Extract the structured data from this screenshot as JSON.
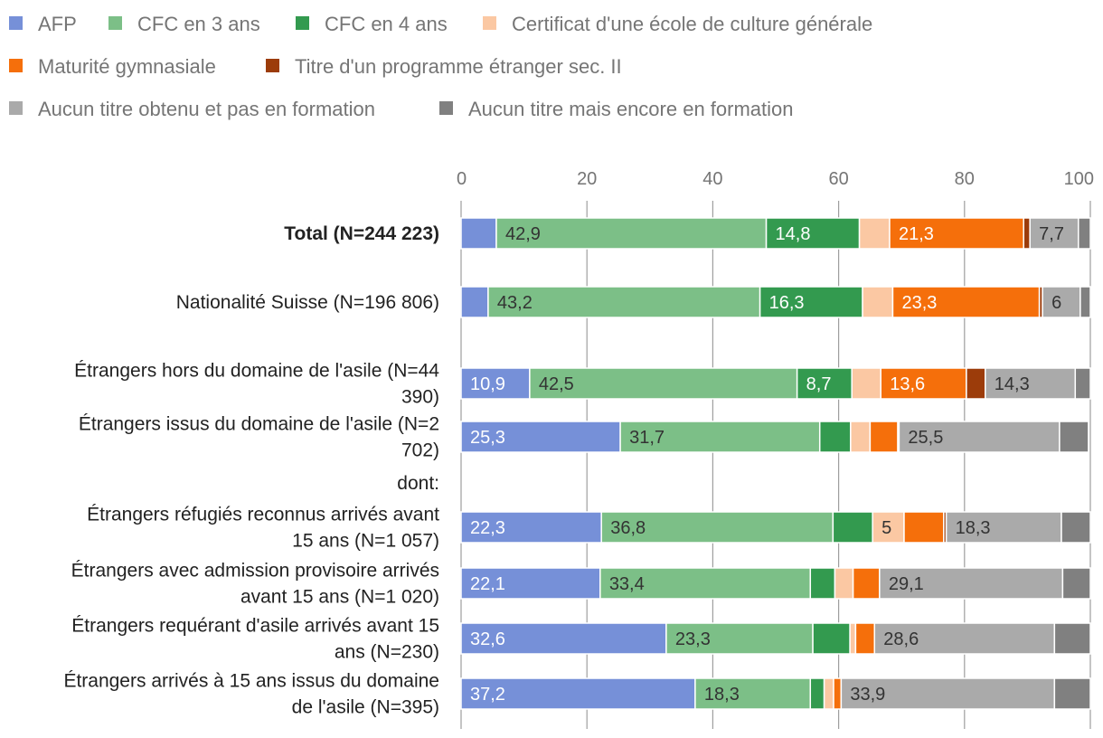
{
  "chart_data": {
    "type": "bar",
    "orientation": "horizontal",
    "stacked": true,
    "xlim": [
      0,
      100
    ],
    "xticks": [
      0,
      20,
      40,
      60,
      80,
      100
    ],
    "grid": true,
    "legend_position": "top",
    "title": "",
    "xlabel": "",
    "ylabel": "",
    "series": [
      {
        "name": "AFP",
        "color": "#7690d8"
      },
      {
        "name": "CFC en 3 ans",
        "color": "#7cbf87"
      },
      {
        "name": "CFC en 4 ans",
        "color": "#339a4f"
      },
      {
        "name": "Certificat d'une école de culture générale",
        "color": "#fbc8a3"
      },
      {
        "name": "Maturité gymnasiale",
        "color": "#f56f0b"
      },
      {
        "name": "Titre d'un programme étranger sec. II",
        "color": "#9c3c0a"
      },
      {
        "name": "Aucun titre obtenu et pas en formation",
        "color": "#aaaaaa"
      },
      {
        "name": "Aucun titre mais encore en formation",
        "color": "#808080"
      }
    ],
    "rows": [
      {
        "label": [
          "Total (N=244 223)"
        ],
        "bold": true,
        "values": [
          5.6,
          42.9,
          14.8,
          4.8,
          21.3,
          1.0,
          7.7,
          1.9
        ],
        "labels": [
          "",
          "42,9",
          "14,8",
          "",
          "21,3",
          "",
          "7,7",
          ""
        ]
      },
      {
        "label": [
          "Nationalité Suisse (N=196 806)"
        ],
        "values": [
          4.3,
          43.2,
          16.3,
          4.8,
          23.3,
          0.5,
          6.0,
          1.6
        ],
        "labels": [
          "",
          "43,2",
          "16,3",
          "",
          "23,3",
          "",
          "6",
          ""
        ]
      },
      {
        "label": [
          "Étrangers hors du domaine de l'asile (N=44",
          "390)"
        ],
        "values": [
          10.9,
          42.5,
          8.7,
          4.6,
          13.6,
          3.0,
          14.3,
          2.4
        ],
        "labels": [
          "10,9",
          "42,5",
          "8,7",
          "",
          "13,6",
          "",
          "14,3",
          ""
        ]
      },
      {
        "label": [
          "Étrangers issus du domaine de l'asile (N=2",
          "702)"
        ],
        "values": [
          25.3,
          31.7,
          4.9,
          3.1,
          4.4,
          0.2,
          25.5,
          4.6
        ],
        "labels": [
          "25,3",
          "31,7",
          "",
          "",
          "",
          "",
          "25,5",
          ""
        ]
      },
      {
        "label": [
          "dont:"
        ],
        "header": true
      },
      {
        "label": [
          "Étrangers réfugiés reconnus arrivés avant",
          "15 ans (N=1 057)"
        ],
        "values": [
          22.3,
          36.8,
          6.3,
          5.0,
          6.3,
          0.4,
          18.3,
          4.6
        ],
        "labels": [
          "22,3",
          "36,8",
          "",
          "5",
          "",
          "",
          "18,3",
          ""
        ]
      },
      {
        "label": [
          "Étrangers avec admission provisoire arrivés",
          "avant 15 ans (N=1 020)"
        ],
        "values": [
          22.1,
          33.4,
          3.9,
          2.9,
          4.2,
          0.0,
          29.1,
          4.4
        ],
        "labels": [
          "22,1",
          "33,4",
          "",
          "",
          "",
          "",
          "29,1",
          ""
        ]
      },
      {
        "label": [
          "Étrangers requérant d'asile arrivés avant 15",
          "ans (N=230)"
        ],
        "values": [
          32.6,
          23.3,
          5.9,
          0.9,
          3.0,
          0.0,
          28.6,
          5.7
        ],
        "labels": [
          "32,6",
          "23,3",
          "",
          "",
          "",
          "",
          "28,6",
          ""
        ]
      },
      {
        "label": [
          "Étrangers arrivés à 15 ans issus du domaine",
          "de l'asile (N=395)"
        ],
        "values": [
          37.2,
          18.3,
          2.2,
          1.5,
          1.2,
          0.0,
          33.9,
          5.7
        ],
        "labels": [
          "37,2",
          "18,3",
          "",
          "",
          "",
          "",
          "33,9",
          ""
        ]
      }
    ]
  }
}
